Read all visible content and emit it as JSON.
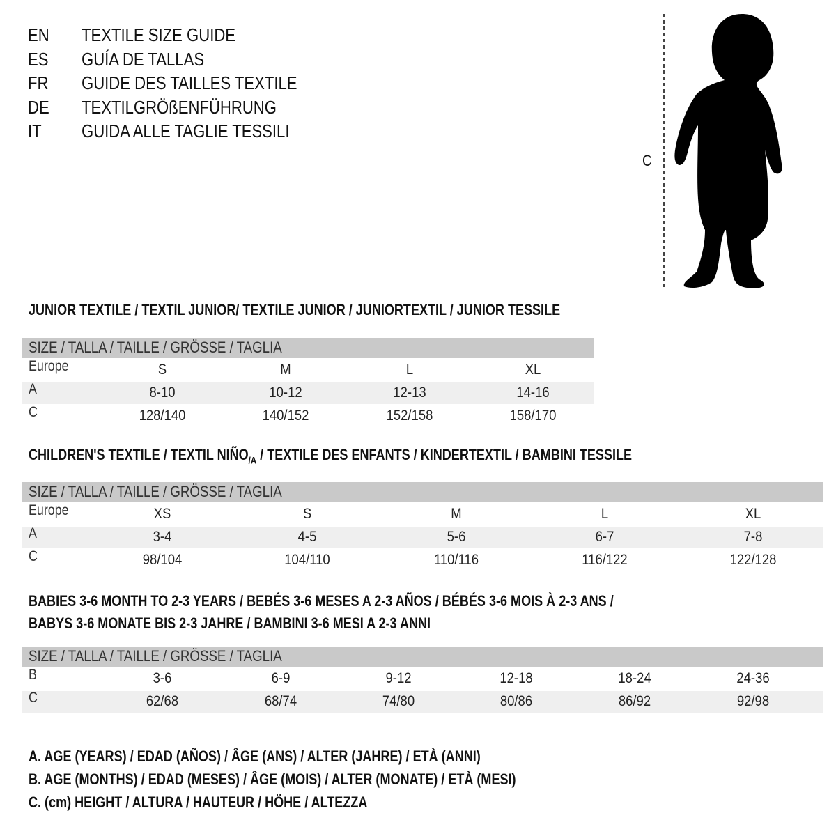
{
  "title_lines": [
    {
      "lang": "EN",
      "text": "TEXTILE SIZE GUIDE"
    },
    {
      "lang": "ES",
      "text": "GUÍA DE TALLAS"
    },
    {
      "lang": "FR",
      "text": "GUIDE DES TAILLES TEXTILE"
    },
    {
      "lang": "DE",
      "text": "TEXTILGRÖßENFÜHRUNG"
    },
    {
      "lang": "IT",
      "text": "GUIDA ALLE TAGLIE TESSILI"
    }
  ],
  "figure": {
    "measure_label": "C",
    "icon": "child-silhouette-icon"
  },
  "junior": {
    "heading": "JUNIOR TEXTILE / TEXTIL JUNIOR/ TEXTILE JUNIOR / JUNIORTEXTIL / JUNIOR TESSILE",
    "header": "SIZE / TALLA / TAILLE / GRÖSSE / TAGLIA",
    "rows": [
      {
        "label": "Europe",
        "values": [
          "S",
          "M",
          "L",
          "XL"
        ]
      },
      {
        "label": "A",
        "values": [
          "8-10",
          "10-12",
          "12-13",
          "14-16"
        ]
      },
      {
        "label": "C",
        "values": [
          "128/140",
          "140/152",
          "152/158",
          "158/170"
        ]
      }
    ]
  },
  "children": {
    "heading_pre": "CHILDREN'S TEXTILE / TEXTIL NIÑO",
    "heading_sub": "/A",
    "heading_post": " / TEXTILE DES ENFANTS / KINDERTEXTIL / BAMBINI TESSILE",
    "header": "SIZE / TALLA / TAILLE / GRÖSSE / TAGLIA",
    "rows": [
      {
        "label": "Europe",
        "values": [
          "XS",
          "S",
          "M",
          "L",
          "XL"
        ]
      },
      {
        "label": "A",
        "values": [
          "3-4",
          "4-5",
          "5-6",
          "6-7",
          "7-8"
        ]
      },
      {
        "label": "C",
        "values": [
          "98/104",
          "104/110",
          "110/116",
          "116/122",
          "122/128"
        ]
      }
    ]
  },
  "babies": {
    "heading_1": "BABIES 3-6 MONTH TO 2-3 YEARS / BEBÉS 3-6 MESES A 2-3 AÑOS / BÉBÉS 3-6 MOIS À 2-3 ANS /",
    "heading_2": "BABYS 3-6 MONATE BIS 2-3 JAHRE / BAMBINI 3-6 MESI A 2-3 ANNI",
    "header": "SIZE / TALLA / TAILLE / GRÖSSE / TAGLIA",
    "rows": [
      {
        "label": "B",
        "values": [
          "3-6",
          "6-9",
          "9-12",
          "12-18",
          "18-24",
          "24-36"
        ]
      },
      {
        "label": "C",
        "values": [
          "62/68",
          "68/74",
          "74/80",
          "80/86",
          "86/92",
          "92/98"
        ]
      }
    ]
  },
  "legend": [
    "A. AGE (YEARS) / EDAD (AÑOS) / ÂGE (ANS) / ALTER (JAHRE) / ETÀ (ANNI)",
    "B. AGE (MONTHS) / EDAD (MESES) / ÂGE (MOIS) / ALTER (MONATE) / ETÀ (MESI)",
    "C. (cm) HEIGHT / ALTURA / HAUTEUR / HÖHE / ALTEZZA"
  ],
  "colors": {
    "header_bg": "#c9c9c9",
    "shade_bg": "#efefef"
  }
}
